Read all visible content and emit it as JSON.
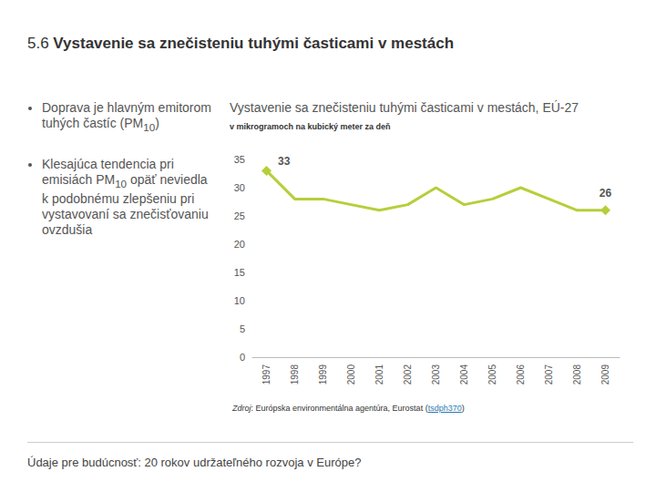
{
  "header": {
    "title": "5.6 Vystavenie sa znečisteniu tuhými časticami v mestách"
  },
  "bullets": [
    "Doprava je hlavným emitorom tuhých častíc (PM10)",
    "Klesajúca tendencia pri emisiách PM10 opäť neviedla k podobnému zlepšeniu pri vystavovaní sa znečisťovaniu ovzdušia"
  ],
  "chart_data": {
    "type": "line",
    "title": "Vystavenie sa znečisteniu tuhými časticami v mestách, EÚ-27",
    "subtitle": "v mikrogramoch na kubický meter za deň",
    "categories": [
      "1997",
      "1998",
      "1999",
      "2000",
      "2001",
      "2002",
      "2003",
      "2004",
      "2005",
      "2006",
      "2007",
      "2008",
      "2009"
    ],
    "values": [
      33,
      28,
      28,
      27,
      26,
      27,
      30,
      27,
      28,
      30,
      28,
      26,
      26
    ],
    "value_labels": [
      "33",
      null,
      null,
      null,
      null,
      null,
      null,
      null,
      null,
      null,
      null,
      null,
      "26"
    ],
    "color": "#b5cf3a",
    "marker": "diamond",
    "ylim": [
      0,
      35
    ],
    "yticks": [
      0,
      5,
      10,
      15,
      20,
      25,
      30,
      35
    ],
    "grid": false,
    "source": "Zdroj: Európska environmentálna agentúra, Eurostat (tsdph370)"
  },
  "footer": "Údaje pre budúcnosť: 20 rokov udržateľného rozvoja v Európe?"
}
